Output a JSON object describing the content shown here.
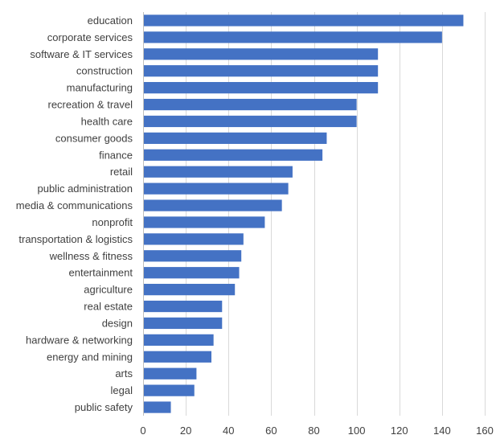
{
  "chart_data": {
    "type": "bar",
    "orientation": "horizontal",
    "title": "",
    "xlabel": "",
    "ylabel": "",
    "xlim": [
      0,
      160
    ],
    "x_ticks": [
      0,
      20,
      40,
      60,
      80,
      100,
      120,
      140,
      160
    ],
    "grid": true,
    "legend": "none",
    "bar_color": "#4472C4",
    "categories": [
      "education",
      "corporate services",
      "software & IT services",
      "construction",
      "manufacturing",
      "recreation & travel",
      "health care",
      "consumer goods",
      "finance",
      "retail",
      "public administration",
      "media & communications",
      "nonprofit",
      "transportation & logistics",
      "wellness & fitness",
      "entertainment",
      "agriculture",
      "real estate",
      "design",
      "hardware & networking",
      "energy and mining",
      "arts",
      "legal",
      "public safety"
    ],
    "values": [
      150,
      140,
      110,
      110,
      110,
      100,
      100,
      86,
      84,
      70,
      68,
      65,
      57,
      47,
      46,
      45,
      43,
      37,
      37,
      33,
      32,
      25,
      24,
      13
    ]
  }
}
